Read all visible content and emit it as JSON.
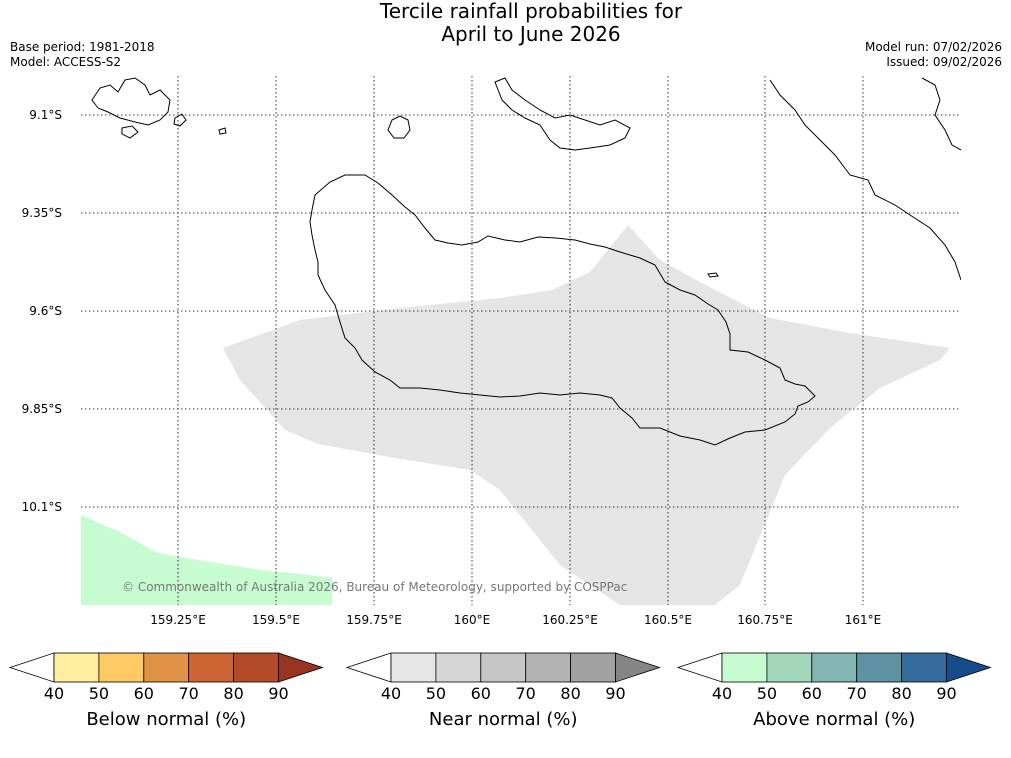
{
  "title_line1": "Tercile rainfall probabilities for",
  "title_line2": "April to June 2026",
  "base_period": "Base period: 1981-2018",
  "model": "Model: ACCESS-S2",
  "model_run": "Model run: 07/02/2026",
  "issued": "Issued: 09/02/2026",
  "latitudes": [
    "9.1°S",
    "9.35°S",
    "9.6°S",
    "9.85°S",
    "10.1°S"
  ],
  "longitudes": [
    "159.25°E",
    "159.5°E",
    "159.75°E",
    "160°E",
    "160.25°E",
    "160.5°E",
    "160.75°E",
    "161°E"
  ],
  "copyright": "© Commonwealth of Australia 2026, Bureau of Meteorology, supported by COSPPac",
  "colorbars": [
    {
      "label": "Below normal (%)",
      "ticks": [
        "40",
        "50",
        "60",
        "70",
        "80",
        "90"
      ],
      "colors": [
        "#ffffff",
        "#ffeda0",
        "#fec962",
        "#e09346",
        "#cf6535",
        "#b34a28",
        "#973521"
      ]
    },
    {
      "label": "Near normal (%)",
      "ticks": [
        "40",
        "50",
        "60",
        "70",
        "80",
        "90"
      ],
      "colors": [
        "#ffffff",
        "#e6e6e6",
        "#d6d6d6",
        "#c6c6c6",
        "#b3b3b3",
        "#a1a1a1",
        "#858585"
      ]
    },
    {
      "label": "Above normal (%)",
      "ticks": [
        "40",
        "50",
        "60",
        "70",
        "80",
        "90"
      ],
      "colors": [
        "#ffffff",
        "#c7fcd1",
        "#a4d8bd",
        "#83b6b2",
        "#5e93a1",
        "#356a9c",
        "#154c8a"
      ]
    }
  ]
}
